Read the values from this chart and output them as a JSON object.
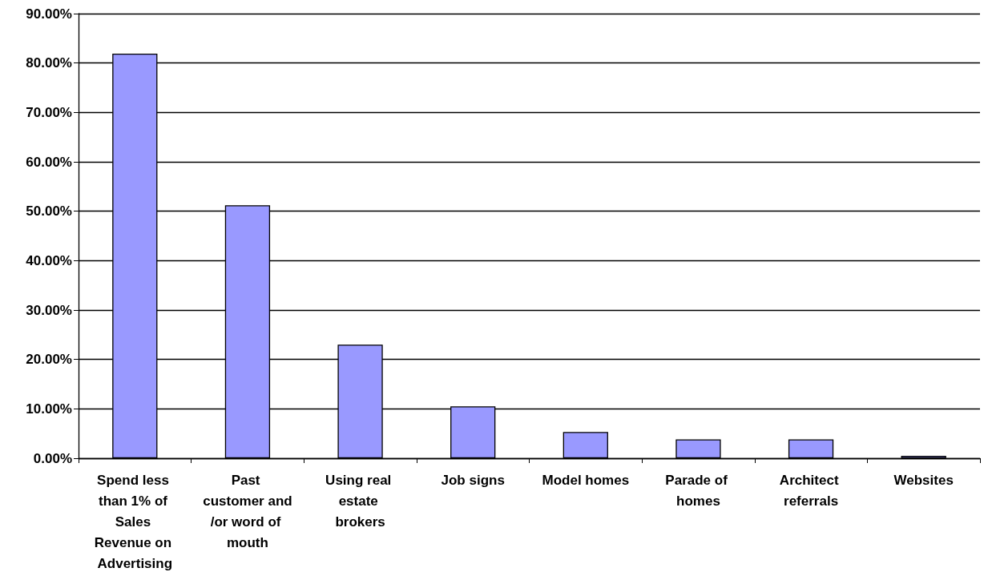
{
  "chart_data": {
    "type": "bar",
    "categories": [
      "Spend less than 1% of Sales Revenue on Advertising",
      "Past customer and/or word of mouth",
      "Using real estate brokers",
      "Job signs",
      "Model homes",
      "Parade of homes",
      "Architect referrals",
      "Websites"
    ],
    "values": [
      81.9,
      51.2,
      23.0,
      10.5,
      5.3,
      3.8,
      3.8,
      0.5
    ],
    "color": "#9999ff",
    "ylim": [
      0,
      90
    ],
    "yticks": [
      {
        "value": 0,
        "label": "0.00%"
      },
      {
        "value": 10,
        "label": "10.00%"
      },
      {
        "value": 20,
        "label": "20.00%"
      },
      {
        "value": 30,
        "label": "30.00%"
      },
      {
        "value": 40,
        "label": "40.00%"
      },
      {
        "value": 50,
        "label": "50.00%"
      },
      {
        "value": 60,
        "label": "60.00%"
      },
      {
        "value": 70,
        "label": "70.00%"
      },
      {
        "value": 80,
        "label": "80.00%"
      },
      {
        "value": 90,
        "label": "90.00%"
      }
    ],
    "grid": "y"
  }
}
